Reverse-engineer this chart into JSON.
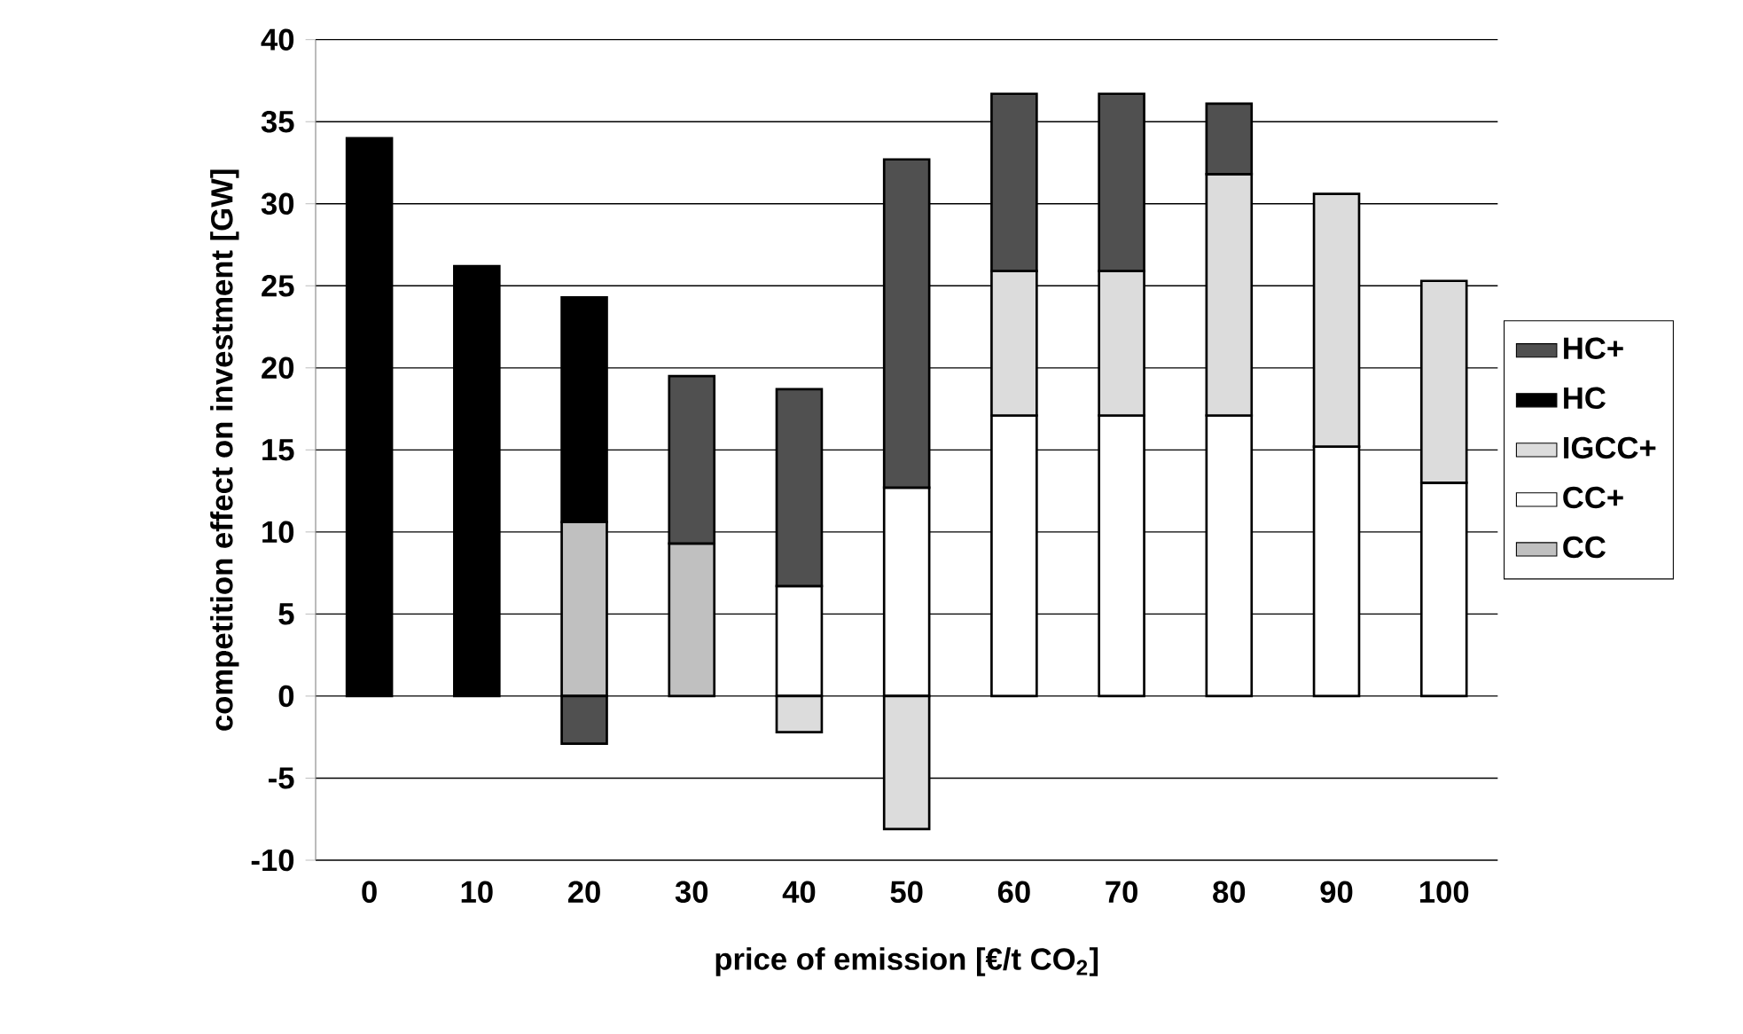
{
  "chart_data": {
    "type": "bar",
    "stacked": true,
    "xlabel": "price of emission [€/t CO$_{2}$]",
    "ylabel": "competition effect on investment [GW]",
    "categories": [
      "0",
      "10",
      "20",
      "30",
      "40",
      "50",
      "60",
      "70",
      "80",
      "90",
      "100"
    ],
    "series": [
      {
        "name": "CC",
        "color": "#c0c0c0",
        "values": [
          null,
          null,
          10.6,
          9.3,
          null,
          null,
          null,
          null,
          null,
          null,
          null
        ]
      },
      {
        "name": "CC+",
        "color": "#ffffff",
        "values": [
          null,
          null,
          null,
          null,
          6.7,
          12.7,
          17.1,
          17.1,
          17.1,
          15.2,
          13.0
        ]
      },
      {
        "name": "IGCC+",
        "color": "#dcdcdc",
        "values": [
          null,
          null,
          null,
          null,
          -2.2,
          -8.1,
          8.8,
          8.8,
          14.7,
          15.4,
          12.3
        ]
      },
      {
        "name": "HC",
        "color": "#000000",
        "values": [
          34.0,
          26.2,
          13.7,
          null,
          null,
          null,
          null,
          null,
          null,
          null,
          null
        ]
      },
      {
        "name": "HC+",
        "color": "#505050",
        "values": [
          null,
          null,
          -2.9,
          10.2,
          12.0,
          20.0,
          10.8,
          10.8,
          4.3,
          null,
          null
        ]
      }
    ],
    "ylim": [
      -10,
      40
    ],
    "yticks": [
      -10,
      -5,
      0,
      5,
      10,
      15,
      20,
      25,
      30,
      35,
      40
    ],
    "grid": "y",
    "legend": "right"
  }
}
